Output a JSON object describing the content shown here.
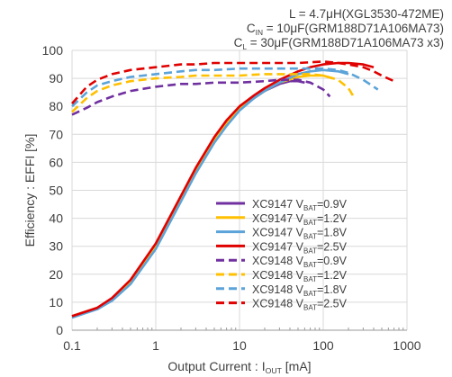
{
  "chart_data": {
    "type": "line",
    "title_lines": [
      {
        "main": "L = 4.7μH(XGL3530-472ME)"
      },
      {
        "main": "C",
        "sub": "IN",
        "rest": " = 10μF(GRM188D71A106MA73)"
      },
      {
        "main": "C",
        "sub": "L",
        "rest": " = 30μF(GRM188D71A106MA73 x3)"
      }
    ],
    "xlabel": {
      "main": "Output Current : I",
      "sub": "OUT",
      "rest": " [mA]"
    },
    "ylabel": "Efficiency : EFFI [%]",
    "x_scale": "log",
    "xlim": [
      0.1,
      1000
    ],
    "ylim": [
      0,
      100
    ],
    "x_ticks": [
      0.1,
      1,
      10,
      100,
      1000
    ],
    "x_tick_labels": [
      "0.1",
      "1",
      "10",
      "100",
      "1000"
    ],
    "y_ticks": [
      0,
      10,
      20,
      30,
      40,
      50,
      60,
      70,
      80,
      90,
      100
    ],
    "y_tick_labels": [
      "0",
      "10",
      "20",
      "30",
      "40",
      "50",
      "60",
      "70",
      "80",
      "90",
      "100"
    ],
    "grid": true,
    "legend_position": "center-right",
    "series": [
      {
        "name": "XC9147",
        "vbat": "0.9V",
        "color": "#7030a0",
        "dash": false,
        "x": [
          0.1,
          0.2,
          0.3,
          0.5,
          1,
          2,
          3,
          5,
          7,
          10,
          15,
          20,
          30,
          40,
          50,
          60
        ],
        "y": [
          5,
          8,
          11,
          17,
          30,
          47,
          57,
          68,
          74,
          79,
          83,
          85.5,
          88,
          89,
          89,
          88.5
        ]
      },
      {
        "name": "XC9147",
        "vbat": "1.2V",
        "color": "#ffc000",
        "dash": false,
        "x": [
          0.1,
          0.2,
          0.3,
          0.5,
          1,
          2,
          3,
          5,
          7,
          10,
          15,
          20,
          30,
          50,
          70,
          100,
          130
        ],
        "y": [
          5,
          8,
          11,
          17,
          30,
          47,
          57,
          68,
          74,
          79,
          83,
          85.5,
          88.5,
          90.5,
          91,
          91,
          90
        ]
      },
      {
        "name": "XC9147",
        "vbat": "1.8V",
        "color": "#5ba3d9",
        "dash": false,
        "x": [
          0.1,
          0.2,
          0.3,
          0.5,
          1,
          2,
          3,
          5,
          7,
          10,
          15,
          20,
          30,
          50,
          70,
          100,
          150,
          200
        ],
        "y": [
          4.5,
          7.5,
          10.5,
          16.5,
          29,
          46,
          56,
          67,
          73,
          78.5,
          83,
          85.5,
          88.5,
          91.5,
          92.5,
          93,
          92.5,
          91.5
        ]
      },
      {
        "name": "XC9147",
        "vbat": "2.5V",
        "color": "#e00000",
        "dash": false,
        "x": [
          0.1,
          0.2,
          0.3,
          0.5,
          1,
          2,
          3,
          5,
          7,
          10,
          15,
          20,
          30,
          50,
          70,
          100,
          150,
          200,
          300,
          400
        ],
        "y": [
          5,
          8,
          11.5,
          18,
          31,
          48,
          58,
          69,
          75,
          80,
          84,
          86.5,
          89.5,
          92.5,
          94,
          95,
          95.5,
          95.5,
          95,
          94
        ]
      },
      {
        "name": "XC9148",
        "vbat": "0.9V",
        "color": "#7030a0",
        "dash": true,
        "x": [
          0.1,
          0.15,
          0.2,
          0.3,
          0.5,
          1,
          2,
          3,
          5,
          10,
          20,
          30,
          50,
          70,
          100,
          120
        ],
        "y": [
          77,
          79.5,
          81.5,
          83.5,
          85.5,
          87,
          88,
          88,
          88.5,
          88.5,
          89,
          89.5,
          89.5,
          88.5,
          86,
          83.5
        ]
      },
      {
        "name": "XC9148",
        "vbat": "1.2V",
        "color": "#ffc000",
        "dash": true,
        "x": [
          0.1,
          0.15,
          0.2,
          0.3,
          0.5,
          1,
          2,
          3,
          5,
          10,
          20,
          30,
          50,
          70,
          100,
          150,
          200,
          230
        ],
        "y": [
          78,
          83,
          85.5,
          87.5,
          89,
          90,
          90.5,
          91,
          91,
          91,
          91.5,
          91.5,
          91.5,
          91.5,
          91,
          89.5,
          86.5,
          83.5
        ]
      },
      {
        "name": "XC9148",
        "vbat": "1.8V",
        "color": "#5ba3d9",
        "dash": true,
        "x": [
          0.1,
          0.15,
          0.2,
          0.3,
          0.5,
          1,
          2,
          3,
          5,
          10,
          20,
          30,
          50,
          100,
          150,
          200,
          300,
          450
        ],
        "y": [
          80,
          85,
          87.5,
          89,
          90.5,
          91.5,
          92.5,
          93,
          93,
          93.5,
          93.5,
          93.5,
          93.5,
          93.5,
          93,
          92,
          89.5,
          86
        ]
      },
      {
        "name": "XC9148",
        "vbat": "2.5V",
        "color": "#e00000",
        "dash": true,
        "x": [
          0.1,
          0.15,
          0.2,
          0.3,
          0.5,
          1,
          2,
          3,
          5,
          10,
          20,
          30,
          50,
          100,
          150,
          200,
          300,
          400,
          500,
          700
        ],
        "y": [
          81,
          87,
          89.5,
          91.5,
          93,
          94,
          95,
          95,
          95.5,
          95.5,
          95.5,
          95.5,
          95.5,
          96,
          95.5,
          95,
          94,
          92.5,
          91,
          89
        ]
      }
    ]
  }
}
